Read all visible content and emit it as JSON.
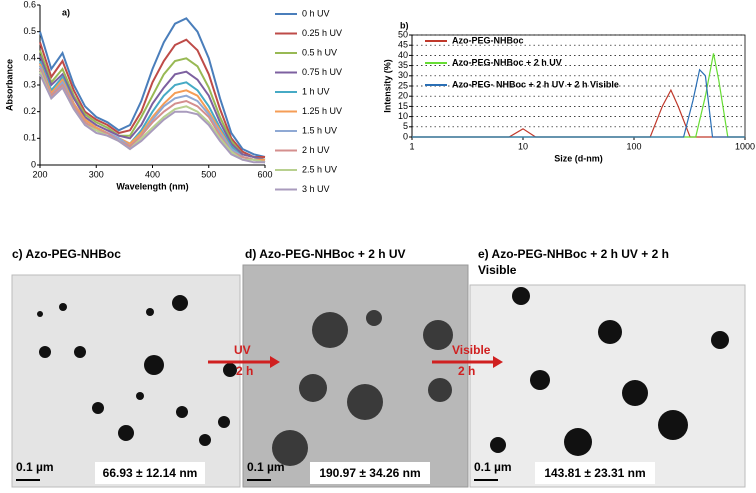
{
  "chart_data": [
    {
      "type": "line",
      "panel_label": "a)",
      "xlabel": "Wavelength (nm)",
      "ylabel": "Absorbance",
      "x": [
        200,
        220,
        240,
        260,
        280,
        300,
        320,
        340,
        360,
        380,
        400,
        420,
        440,
        460,
        480,
        500,
        520,
        540,
        560,
        580,
        600
      ],
      "xlim": [
        200,
        600
      ],
      "xticks": [
        200,
        300,
        400,
        500,
        600
      ],
      "ylim": [
        0,
        0.6
      ],
      "yticks": [
        0,
        0.1,
        0.2,
        0.3,
        0.4,
        0.5,
        0.6
      ],
      "grid": false,
      "legend": "right",
      "series": [
        {
          "name": "0 h UV",
          "color": "#4a7ebb",
          "values": [
            0.5,
            0.36,
            0.42,
            0.3,
            0.22,
            0.18,
            0.16,
            0.13,
            0.15,
            0.24,
            0.36,
            0.46,
            0.53,
            0.55,
            0.5,
            0.4,
            0.25,
            0.12,
            0.06,
            0.04,
            0.03
          ]
        },
        {
          "name": "0.25 h UV",
          "color": "#be4b48",
          "values": [
            0.46,
            0.33,
            0.39,
            0.28,
            0.2,
            0.17,
            0.15,
            0.12,
            0.13,
            0.2,
            0.31,
            0.39,
            0.45,
            0.47,
            0.43,
            0.34,
            0.21,
            0.1,
            0.05,
            0.03,
            0.03
          ]
        },
        {
          "name": "0.5 h UV",
          "color": "#98b954",
          "values": [
            0.43,
            0.31,
            0.36,
            0.26,
            0.19,
            0.16,
            0.14,
            0.11,
            0.11,
            0.18,
            0.26,
            0.34,
            0.39,
            0.4,
            0.37,
            0.29,
            0.18,
            0.09,
            0.04,
            0.03,
            0.02
          ]
        },
        {
          "name": "0.75 h UV",
          "color": "#7d60a0",
          "values": [
            0.41,
            0.3,
            0.34,
            0.25,
            0.18,
            0.15,
            0.13,
            0.11,
            0.1,
            0.15,
            0.23,
            0.29,
            0.34,
            0.35,
            0.32,
            0.26,
            0.16,
            0.08,
            0.04,
            0.03,
            0.02
          ]
        },
        {
          "name": "1 h UV",
          "color": "#46aac5",
          "values": [
            0.39,
            0.28,
            0.33,
            0.23,
            0.17,
            0.14,
            0.12,
            0.1,
            0.08,
            0.13,
            0.2,
            0.26,
            0.3,
            0.31,
            0.28,
            0.22,
            0.14,
            0.07,
            0.03,
            0.02,
            0.02
          ]
        },
        {
          "name": "1.25 h UV",
          "color": "#f59d56",
          "values": [
            0.38,
            0.27,
            0.32,
            0.23,
            0.17,
            0.14,
            0.12,
            0.1,
            0.08,
            0.12,
            0.18,
            0.23,
            0.27,
            0.28,
            0.26,
            0.2,
            0.13,
            0.06,
            0.03,
            0.02,
            0.02
          ]
        },
        {
          "name": "1.5 h UV",
          "color": "#8fa9d4",
          "values": [
            0.37,
            0.26,
            0.31,
            0.22,
            0.16,
            0.13,
            0.12,
            0.1,
            0.07,
            0.11,
            0.17,
            0.22,
            0.25,
            0.26,
            0.24,
            0.19,
            0.12,
            0.06,
            0.03,
            0.02,
            0.01
          ]
        },
        {
          "name": "2 h UV",
          "color": "#d48f8e",
          "values": [
            0.36,
            0.26,
            0.3,
            0.22,
            0.16,
            0.13,
            0.12,
            0.09,
            0.07,
            0.11,
            0.16,
            0.2,
            0.23,
            0.24,
            0.22,
            0.18,
            0.11,
            0.05,
            0.03,
            0.02,
            0.01
          ]
        },
        {
          "name": "2.5 h UV",
          "color": "#b8d08f",
          "values": [
            0.35,
            0.25,
            0.29,
            0.21,
            0.15,
            0.13,
            0.11,
            0.09,
            0.06,
            0.1,
            0.14,
            0.18,
            0.21,
            0.22,
            0.2,
            0.16,
            0.1,
            0.05,
            0.02,
            0.02,
            0.01
          ]
        },
        {
          "name": "3 h UV",
          "color": "#a99bbd",
          "values": [
            0.34,
            0.25,
            0.29,
            0.21,
            0.15,
            0.12,
            0.11,
            0.09,
            0.06,
            0.09,
            0.13,
            0.17,
            0.2,
            0.2,
            0.19,
            0.15,
            0.09,
            0.04,
            0.02,
            0.01,
            0.01
          ]
        }
      ]
    },
    {
      "type": "line",
      "panel_label": "b)",
      "xlabel": "Size (d-nm)",
      "ylabel": "Intensity (%)",
      "xscale": "log",
      "xlim": [
        1,
        1000
      ],
      "xticks": [
        1,
        10,
        100,
        1000
      ],
      "ylim": [
        0,
        50
      ],
      "yticks": [
        0,
        5,
        10,
        15,
        20,
        25,
        30,
        35,
        40,
        45,
        50
      ],
      "grid": true,
      "legend": "upper left",
      "series": [
        {
          "name": "Azo-PEG-NHBoc",
          "color": "#c0392b",
          "x": [
            1,
            7.5,
            10,
            13,
            140,
            180,
            215,
            250,
            320,
            1000
          ],
          "values": [
            0,
            0,
            4,
            0,
            0,
            15,
            23,
            15,
            0,
            0
          ]
        },
        {
          "name": "Azo-PEG-NHBoc + 2 h UV",
          "color": "#66dd33",
          "x": [
            1,
            360,
            440,
            520,
            580,
            700,
            1000
          ],
          "values": [
            0,
            0,
            20,
            41,
            28,
            0,
            0
          ]
        },
        {
          "name": "Azo-PEG- NHBoc + 2 h UV + 2 h Visible",
          "color": "#2a6fb5",
          "x": [
            1,
            280,
            340,
            390,
            440,
            510,
            1000
          ],
          "values": [
            0,
            0,
            18,
            33,
            30,
            0,
            0
          ]
        }
      ]
    }
  ],
  "panels": [
    {
      "title": "c) Azo-PEG-NHBoc",
      "scale_bar": "0.1 µm",
      "size": "66.93 ± 12.14 nm"
    },
    {
      "title": "d) Azo-PEG-NHBoc + 2 h UV",
      "scale_bar": "0.1 µm",
      "size": "190.97 ± 34.26 nm"
    },
    {
      "title": "e) Azo-PEG-NHBoc + 2 h UV + 2 h",
      "title_line2": "Visible",
      "scale_bar": "0.1 µm",
      "size": "143.81 ± 23.31 nm"
    }
  ],
  "arrows": [
    {
      "label": "UV",
      "sublabel": "2 h"
    },
    {
      "label": "Visible",
      "sublabel": "2 h"
    }
  ]
}
